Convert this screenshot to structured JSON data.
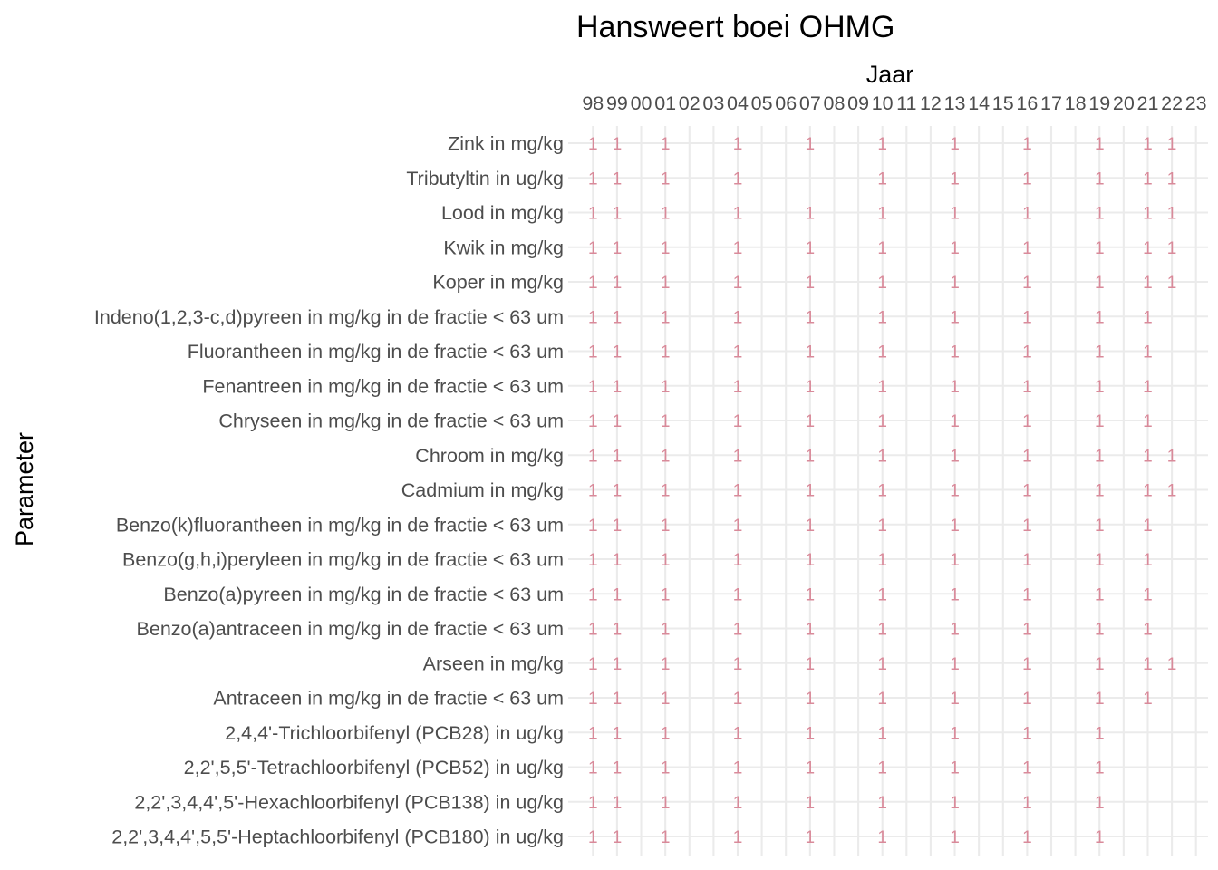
{
  "chart_data": {
    "type": "table",
    "title": "Hansweert boei OHMG",
    "xlabel": "Jaar",
    "ylabel": "Parameter",
    "x_position": "top",
    "grid": true,
    "categories": [
      "98",
      "99",
      "00",
      "01",
      "02",
      "03",
      "04",
      "05",
      "06",
      "07",
      "08",
      "09",
      "10",
      "11",
      "12",
      "13",
      "14",
      "15",
      "16",
      "17",
      "18",
      "19",
      "20",
      "21",
      "22",
      "23"
    ],
    "rows": [
      {
        "parameter": "Zink in mg/kg",
        "years": [
          "98",
          "99",
          "01",
          "04",
          "07",
          "10",
          "13",
          "16",
          "19",
          "21",
          "22"
        ]
      },
      {
        "parameter": "Tributyltin in ug/kg",
        "years": [
          "98",
          "99",
          "01",
          "04",
          "10",
          "13",
          "16",
          "19",
          "21",
          "22"
        ]
      },
      {
        "parameter": "Lood in mg/kg",
        "years": [
          "98",
          "99",
          "01",
          "04",
          "07",
          "10",
          "13",
          "16",
          "19",
          "21",
          "22"
        ]
      },
      {
        "parameter": "Kwik in mg/kg",
        "years": [
          "98",
          "99",
          "01",
          "04",
          "07",
          "10",
          "13",
          "16",
          "19",
          "21",
          "22"
        ]
      },
      {
        "parameter": "Koper in mg/kg",
        "years": [
          "98",
          "99",
          "01",
          "04",
          "07",
          "10",
          "13",
          "16",
          "19",
          "21",
          "22"
        ]
      },
      {
        "parameter": "Indeno(1,2,3-c,d)pyreen in mg/kg in de fractie < 63 um",
        "years": [
          "98",
          "99",
          "01",
          "04",
          "07",
          "10",
          "13",
          "16",
          "19",
          "21"
        ]
      },
      {
        "parameter": "Fluorantheen in mg/kg in de fractie < 63 um",
        "years": [
          "98",
          "99",
          "01",
          "04",
          "07",
          "10",
          "13",
          "16",
          "19",
          "21"
        ]
      },
      {
        "parameter": "Fenantreen in mg/kg in de fractie < 63 um",
        "years": [
          "98",
          "99",
          "01",
          "04",
          "07",
          "10",
          "13",
          "16",
          "19",
          "21"
        ]
      },
      {
        "parameter": "Chryseen in mg/kg in de fractie < 63 um",
        "years": [
          "98",
          "99",
          "01",
          "04",
          "07",
          "10",
          "13",
          "16",
          "19",
          "21"
        ]
      },
      {
        "parameter": "Chroom in mg/kg",
        "years": [
          "98",
          "99",
          "01",
          "04",
          "07",
          "10",
          "13",
          "16",
          "19",
          "21",
          "22"
        ]
      },
      {
        "parameter": "Cadmium in mg/kg",
        "years": [
          "98",
          "99",
          "01",
          "04",
          "07",
          "10",
          "13",
          "16",
          "19",
          "21",
          "22"
        ]
      },
      {
        "parameter": "Benzo(k)fluorantheen in mg/kg in de fractie < 63 um",
        "years": [
          "98",
          "99",
          "01",
          "04",
          "07",
          "10",
          "13",
          "16",
          "19",
          "21"
        ]
      },
      {
        "parameter": "Benzo(g,h,i)peryleen in mg/kg in de fractie < 63 um",
        "years": [
          "98",
          "99",
          "01",
          "04",
          "07",
          "10",
          "13",
          "16",
          "19",
          "21"
        ]
      },
      {
        "parameter": "Benzo(a)pyreen in mg/kg in de fractie < 63 um",
        "years": [
          "98",
          "99",
          "01",
          "04",
          "07",
          "10",
          "13",
          "16",
          "19",
          "21"
        ]
      },
      {
        "parameter": "Benzo(a)antraceen in mg/kg in de fractie < 63 um",
        "years": [
          "98",
          "99",
          "01",
          "04",
          "07",
          "10",
          "13",
          "16",
          "19",
          "21"
        ]
      },
      {
        "parameter": "Arseen in mg/kg",
        "years": [
          "98",
          "99",
          "01",
          "04",
          "07",
          "10",
          "13",
          "16",
          "19",
          "21",
          "22"
        ]
      },
      {
        "parameter": "Antraceen in mg/kg in de fractie < 63 um",
        "years": [
          "98",
          "99",
          "01",
          "04",
          "07",
          "10",
          "13",
          "16",
          "19",
          "21"
        ]
      },
      {
        "parameter": "2,4,4'-Trichloorbifenyl (PCB28) in ug/kg",
        "years": [
          "98",
          "99",
          "01",
          "04",
          "07",
          "10",
          "13",
          "16",
          "19"
        ]
      },
      {
        "parameter": "2,2',5,5'-Tetrachloorbifenyl (PCB52) in ug/kg",
        "years": [
          "98",
          "99",
          "01",
          "04",
          "07",
          "10",
          "13",
          "16",
          "19"
        ]
      },
      {
        "parameter": "2,2',3,4,4',5'-Hexachloorbifenyl (PCB138) in ug/kg",
        "years": [
          "98",
          "99",
          "01",
          "04",
          "07",
          "10",
          "13",
          "16",
          "19"
        ]
      },
      {
        "parameter": "2,2',3,4,4',5,5'-Heptachloorbifenyl (PCB180) in ug/kg",
        "years": [
          "98",
          "99",
          "01",
          "04",
          "07",
          "10",
          "13",
          "16",
          "19"
        ]
      }
    ],
    "cell_value": "1",
    "colors": {
      "cell_text": "#d98a9a",
      "grid": "#ebebeb",
      "tick_text": "#4d4d4d",
      "title_text": "#000000"
    }
  }
}
